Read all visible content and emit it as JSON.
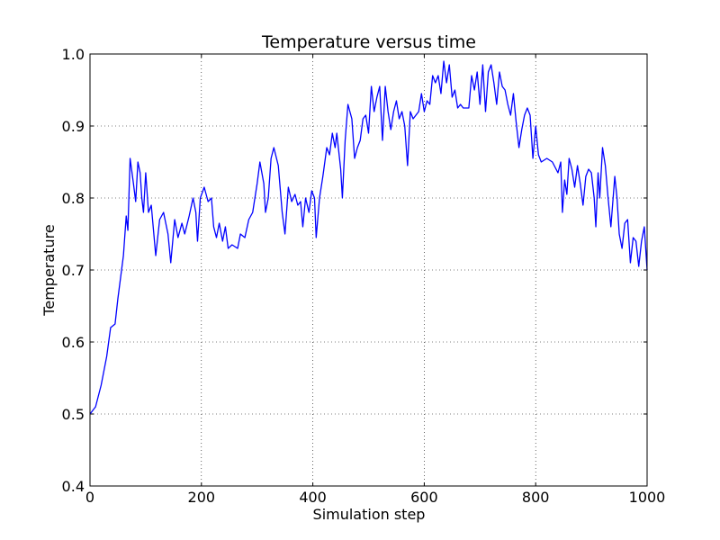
{
  "chart_data": {
    "type": "line",
    "title": "Temperature versus time",
    "x_label": "Simulation step",
    "y_label": "Temperature",
    "x": [
      0,
      10,
      20,
      30,
      37,
      45,
      50,
      60,
      65,
      68,
      72,
      78,
      82,
      86,
      90,
      93,
      96,
      100,
      105,
      110,
      118,
      125,
      132,
      140,
      145,
      152,
      158,
      165,
      170,
      178,
      185,
      190,
      193,
      198,
      205,
      212,
      218,
      222,
      227,
      232,
      238,
      243,
      248,
      255,
      265,
      270,
      278,
      285,
      292,
      300,
      305,
      312,
      315,
      320,
      325,
      330,
      338,
      345,
      350,
      356,
      362,
      368,
      373,
      378,
      382,
      387,
      393,
      398,
      403,
      406,
      412,
      418,
      425,
      430,
      435,
      440,
      443,
      450,
      453,
      458,
      463,
      470,
      475,
      480,
      485,
      490,
      495,
      500,
      505,
      510,
      515,
      520,
      525,
      530,
      535,
      540,
      545,
      550,
      555,
      560,
      565,
      570,
      575,
      580,
      585,
      590,
      595,
      600,
      605,
      610,
      615,
      620,
      625,
      630,
      635,
      640,
      645,
      650,
      655,
      660,
      665,
      670,
      680,
      685,
      690,
      695,
      700,
      705,
      710,
      715,
      720,
      725,
      730,
      735,
      740,
      745,
      750,
      755,
      760,
      765,
      770,
      775,
      780,
      785,
      790,
      795,
      800,
      805,
      810,
      820,
      830,
      840,
      845,
      848,
      852,
      856,
      860,
      865,
      870,
      875,
      880,
      885,
      890,
      895,
      900,
      905,
      908,
      912,
      915,
      920,
      925,
      930,
      935,
      942,
      946,
      950,
      955,
      960,
      965,
      970,
      975,
      980,
      985,
      990,
      995,
      1000
    ],
    "y": [
      0.5,
      0.51,
      0.54,
      0.58,
      0.62,
      0.625,
      0.66,
      0.72,
      0.775,
      0.755,
      0.855,
      0.82,
      0.795,
      0.85,
      0.835,
      0.8,
      0.78,
      0.835,
      0.78,
      0.79,
      0.72,
      0.77,
      0.78,
      0.75,
      0.71,
      0.77,
      0.745,
      0.765,
      0.75,
      0.775,
      0.8,
      0.78,
      0.74,
      0.8,
      0.815,
      0.795,
      0.8,
      0.76,
      0.745,
      0.765,
      0.74,
      0.76,
      0.73,
      0.735,
      0.73,
      0.75,
      0.745,
      0.77,
      0.78,
      0.82,
      0.85,
      0.82,
      0.78,
      0.8,
      0.855,
      0.87,
      0.845,
      0.78,
      0.75,
      0.815,
      0.795,
      0.805,
      0.79,
      0.795,
      0.76,
      0.8,
      0.78,
      0.81,
      0.8,
      0.745,
      0.8,
      0.83,
      0.87,
      0.86,
      0.89,
      0.87,
      0.89,
      0.84,
      0.8,
      0.88,
      0.93,
      0.91,
      0.855,
      0.87,
      0.88,
      0.91,
      0.915,
      0.89,
      0.955,
      0.92,
      0.94,
      0.955,
      0.88,
      0.955,
      0.92,
      0.895,
      0.92,
      0.935,
      0.91,
      0.92,
      0.9,
      0.845,
      0.92,
      0.91,
      0.915,
      0.92,
      0.945,
      0.92,
      0.935,
      0.93,
      0.97,
      0.96,
      0.97,
      0.945,
      0.99,
      0.96,
      0.985,
      0.94,
      0.95,
      0.925,
      0.93,
      0.925,
      0.925,
      0.97,
      0.95,
      0.975,
      0.93,
      0.985,
      0.92,
      0.975,
      0.985,
      0.96,
      0.93,
      0.975,
      0.955,
      0.95,
      0.93,
      0.915,
      0.945,
      0.905,
      0.87,
      0.895,
      0.915,
      0.925,
      0.915,
      0.855,
      0.9,
      0.86,
      0.85,
      0.855,
      0.85,
      0.835,
      0.85,
      0.78,
      0.825,
      0.805,
      0.855,
      0.84,
      0.815,
      0.845,
      0.82,
      0.79,
      0.83,
      0.84,
      0.835,
      0.8,
      0.76,
      0.835,
      0.8,
      0.87,
      0.845,
      0.8,
      0.76,
      0.83,
      0.8,
      0.75,
      0.73,
      0.765,
      0.77,
      0.71,
      0.745,
      0.74,
      0.705,
      0.74,
      0.76,
      0.7
    ],
    "color": "#0000ff",
    "xlim": [
      0,
      1000
    ],
    "xticks": [
      0,
      200,
      400,
      600,
      800,
      1000
    ],
    "ylim": [
      0.4,
      1.0
    ],
    "yticks": [
      0.4,
      0.5,
      0.6,
      0.7,
      0.8,
      0.9,
      {
        "value": 1.0,
        "label": "1.0"
      }
    ],
    "grid": true
  }
}
